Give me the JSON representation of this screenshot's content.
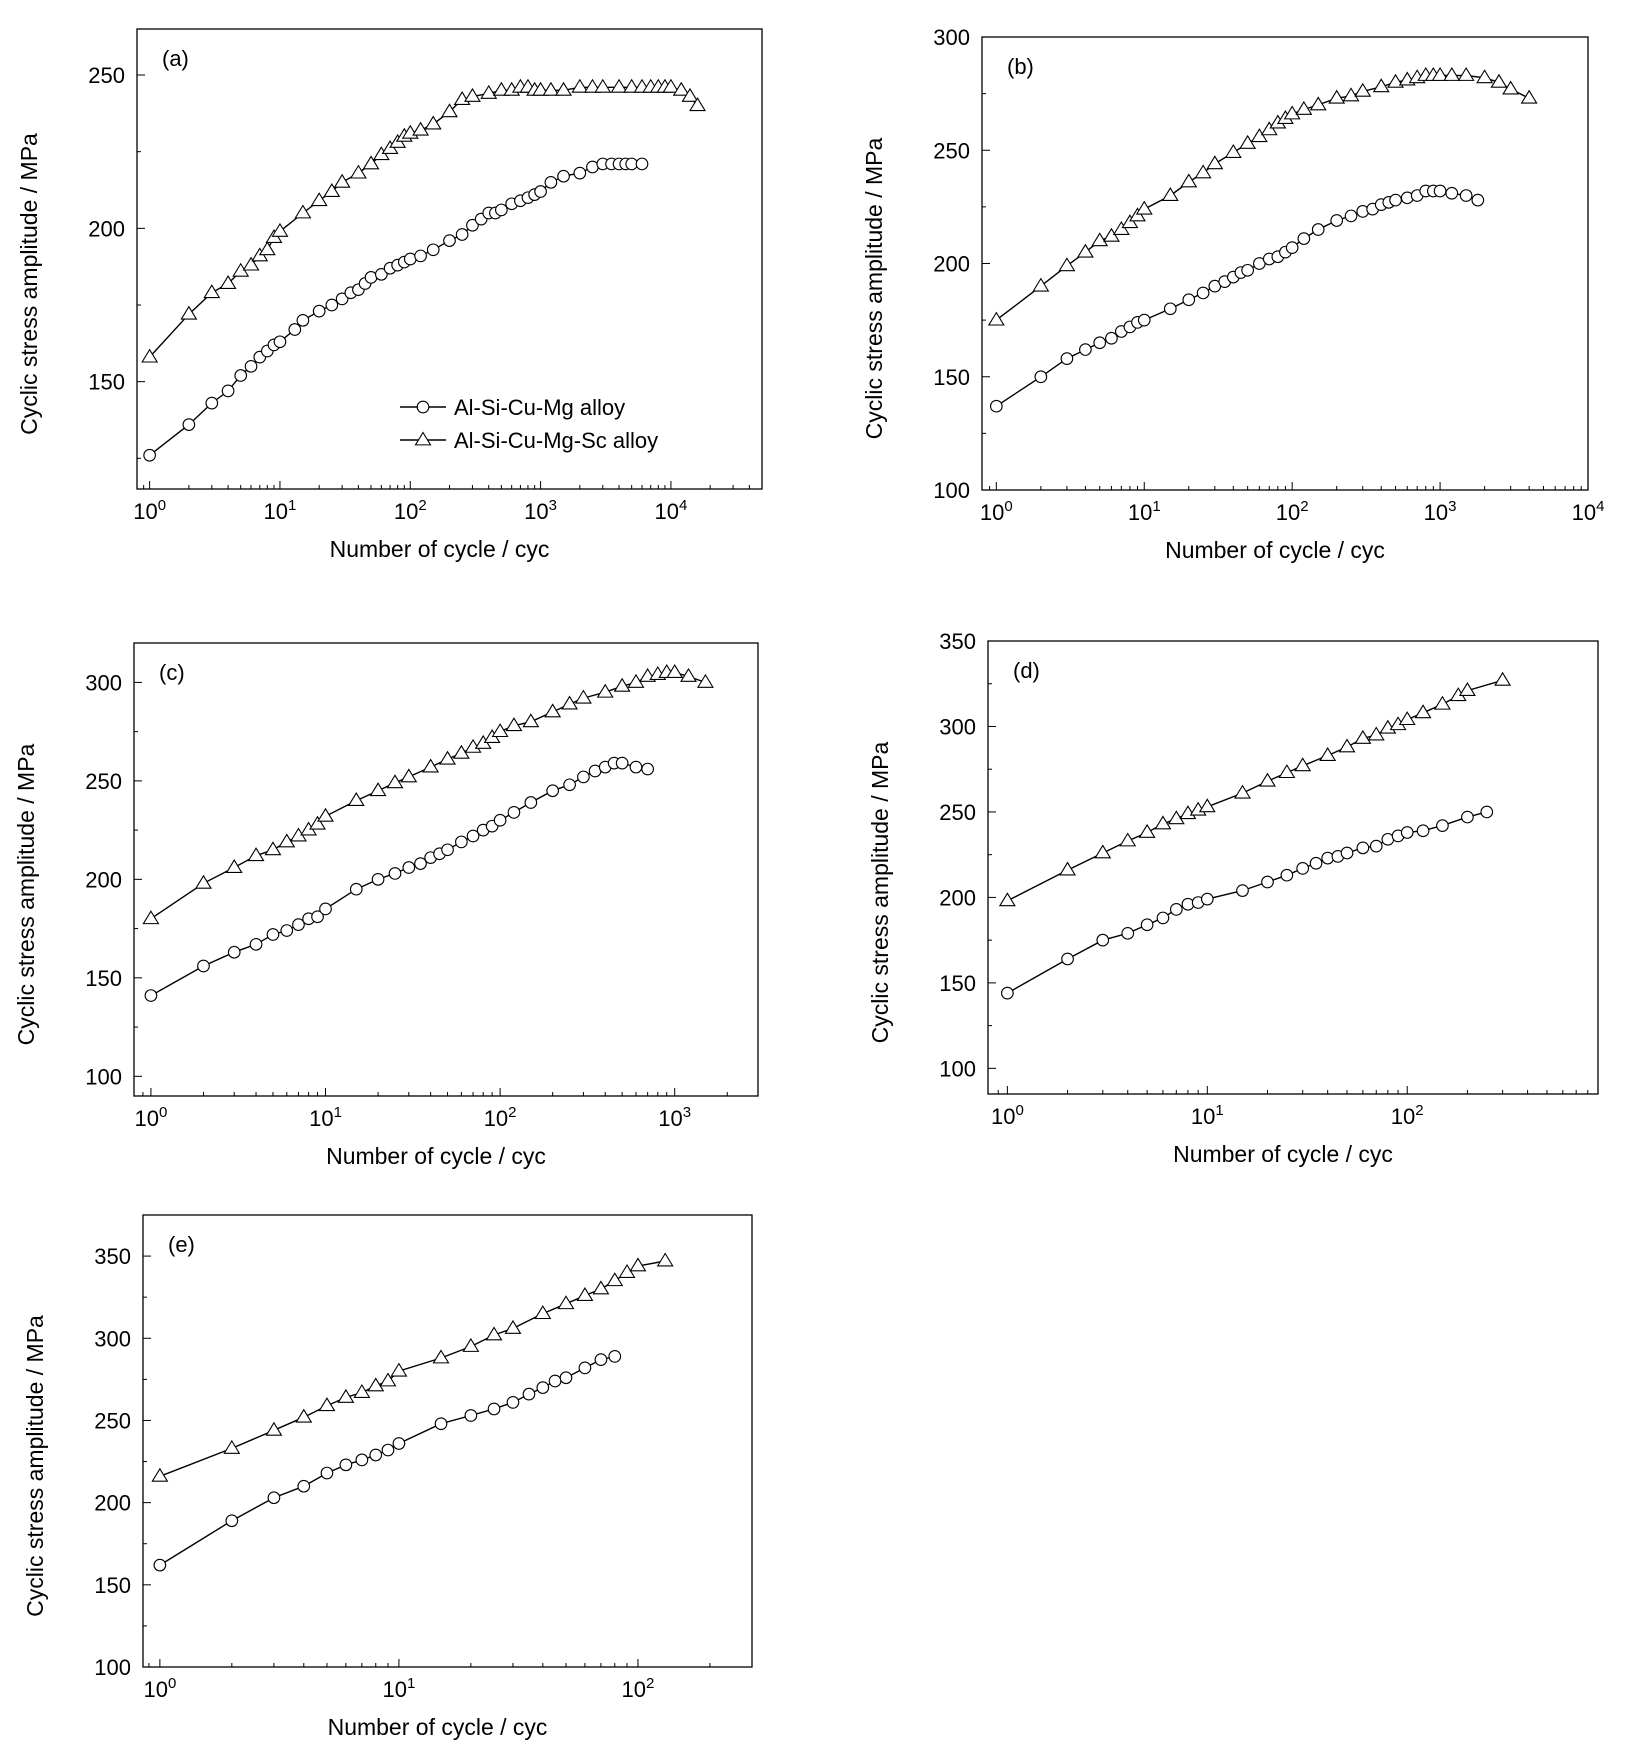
{
  "figure": {
    "background": "#ffffff",
    "line_color": "#000000"
  },
  "legend": {
    "entries": [
      {
        "label": "Al-Si-Cu-Mg alloy",
        "marker": "circle"
      },
      {
        "label": "Al-Si-Cu-Mg-Sc alloy",
        "marker": "triangle"
      }
    ],
    "placement": "bottom-right of panel (a)"
  },
  "chart_data": [
    {
      "panel": "(a)",
      "type": "line",
      "xscale": "log",
      "xlim": [
        0.8,
        50000
      ],
      "ylim": [
        115,
        265
      ],
      "xticks": [
        1,
        10,
        100,
        1000,
        10000
      ],
      "xtick_labels": [
        [
          "10",
          "0"
        ],
        [
          "10",
          "1"
        ],
        [
          "10",
          "2"
        ],
        [
          "10",
          "3"
        ],
        [
          "10",
          "4"
        ]
      ],
      "yticks": [
        150,
        200,
        250
      ],
      "xlabel": "Number of cycle / cyc",
      "ylabel": "Cyclic stress amplitude / MPa",
      "grid": false,
      "series": [
        {
          "name": "Al-Si-Cu-Mg alloy",
          "marker": "circle",
          "x": [
            1,
            2,
            3,
            4,
            5,
            6,
            7,
            8,
            9,
            10,
            13,
            15,
            20,
            25,
            30,
            35,
            40,
            45,
            50,
            60,
            70,
            80,
            90,
            100,
            120,
            150,
            200,
            250,
            300,
            350,
            400,
            450,
            500,
            600,
            700,
            800,
            900,
            1000,
            1200,
            1500,
            2000,
            2500,
            3000,
            3500,
            4000,
            4500,
            5000,
            6000
          ],
          "y": [
            126,
            136,
            143,
            147,
            152,
            155,
            158,
            160,
            162,
            163,
            167,
            170,
            173,
            175,
            177,
            179,
            180,
            182,
            184,
            185,
            187,
            188,
            189,
            190,
            191,
            193,
            196,
            198,
            201,
            203,
            205,
            205,
            206,
            208,
            209,
            210,
            211,
            212,
            215,
            217,
            218,
            220,
            221,
            221,
            221,
            221,
            221,
            221
          ]
        },
        {
          "name": "Al-Si-Cu-Mg-Sc alloy",
          "marker": "triangle",
          "x": [
            1,
            2,
            3,
            4,
            5,
            6,
            7,
            8,
            9,
            10,
            15,
            20,
            25,
            30,
            40,
            50,
            60,
            70,
            80,
            90,
            100,
            120,
            150,
            200,
            250,
            300,
            400,
            500,
            600,
            700,
            800,
            900,
            1000,
            1200,
            1500,
            2000,
            2500,
            3000,
            4000,
            5000,
            6000,
            7000,
            8000,
            9000,
            10000,
            12000,
            14000,
            16000
          ],
          "y": [
            158,
            172,
            179,
            182,
            186,
            188,
            191,
            193,
            197,
            199,
            205,
            209,
            212,
            215,
            218,
            221,
            224,
            226,
            228,
            230,
            231,
            232,
            234,
            238,
            242,
            243,
            244,
            245,
            245,
            246,
            246,
            245,
            245,
            245,
            245,
            246,
            246,
            246,
            246,
            246,
            246,
            246,
            246,
            246,
            246,
            245,
            243,
            240
          ]
        }
      ]
    },
    {
      "panel": "(b)",
      "type": "line",
      "xscale": "log",
      "xlim": [
        0.8,
        10000
      ],
      "ylim": [
        100,
        300
      ],
      "xticks": [
        1,
        10,
        100,
        1000,
        10000
      ],
      "xtick_labels": [
        [
          "10",
          "0"
        ],
        [
          "10",
          "1"
        ],
        [
          "10",
          "2"
        ],
        [
          "10",
          "3"
        ],
        [
          "10",
          "4"
        ]
      ],
      "yticks": [
        100,
        150,
        200,
        250,
        300
      ],
      "xlabel": "Number of cycle / cyc",
      "ylabel": "Cyclic stress amplitude / MPa",
      "grid": false,
      "series": [
        {
          "name": "Al-Si-Cu-Mg alloy",
          "marker": "circle",
          "x": [
            1,
            2,
            3,
            4,
            5,
            6,
            7,
            8,
            9,
            10,
            15,
            20,
            25,
            30,
            35,
            40,
            45,
            50,
            60,
            70,
            80,
            90,
            100,
            120,
            150,
            200,
            250,
            300,
            350,
            400,
            450,
            500,
            600,
            700,
            800,
            900,
            1000,
            1200,
            1500,
            1800
          ],
          "y": [
            137,
            150,
            158,
            162,
            165,
            167,
            170,
            172,
            174,
            175,
            180,
            184,
            187,
            190,
            192,
            194,
            196,
            197,
            200,
            202,
            203,
            205,
            207,
            211,
            215,
            219,
            221,
            223,
            224,
            226,
            227,
            228,
            229,
            230,
            232,
            232,
            232,
            231,
            230,
            228
          ]
        },
        {
          "name": "Al-Si-Cu-Mg-Sc alloy",
          "marker": "triangle",
          "x": [
            1,
            2,
            3,
            4,
            5,
            6,
            7,
            8,
            9,
            10,
            15,
            20,
            25,
            30,
            40,
            50,
            60,
            70,
            80,
            90,
            100,
            120,
            150,
            200,
            250,
            300,
            400,
            500,
            600,
            700,
            800,
            900,
            1000,
            1200,
            1500,
            2000,
            2500,
            3000,
            4000
          ],
          "y": [
            175,
            190,
            199,
            205,
            210,
            212,
            215,
            218,
            221,
            224,
            230,
            236,
            240,
            244,
            249,
            253,
            256,
            259,
            262,
            264,
            266,
            268,
            270,
            273,
            274,
            276,
            278,
            280,
            281,
            282,
            283,
            283,
            283,
            283,
            283,
            282,
            280,
            277,
            273
          ]
        }
      ]
    },
    {
      "panel": "(c)",
      "type": "line",
      "xscale": "log",
      "xlim": [
        0.8,
        3000
      ],
      "ylim": [
        90,
        320
      ],
      "xticks": [
        1,
        10,
        100,
        1000
      ],
      "xtick_labels": [
        [
          "10",
          "0"
        ],
        [
          "10",
          "1"
        ],
        [
          "10",
          "2"
        ],
        [
          "10",
          "3"
        ]
      ],
      "yticks": [
        100,
        150,
        200,
        250,
        300
      ],
      "xlabel": "Number of cycle / cyc",
      "ylabel": "Cyclic stress amplitude / MPa",
      "grid": false,
      "series": [
        {
          "name": "Al-Si-Cu-Mg alloy",
          "marker": "circle",
          "x": [
            1,
            2,
            3,
            4,
            5,
            6,
            7,
            8,
            9,
            10,
            15,
            20,
            25,
            30,
            35,
            40,
            45,
            50,
            60,
            70,
            80,
            90,
            100,
            120,
            150,
            200,
            250,
            300,
            350,
            400,
            450,
            500,
            600,
            700
          ],
          "y": [
            141,
            156,
            163,
            167,
            172,
            174,
            177,
            180,
            181,
            185,
            195,
            200,
            203,
            206,
            208,
            211,
            213,
            215,
            219,
            222,
            225,
            227,
            230,
            234,
            239,
            245,
            248,
            252,
            255,
            257,
            259,
            259,
            257,
            256
          ]
        },
        {
          "name": "Al-Si-Cu-Mg-Sc alloy",
          "marker": "triangle",
          "x": [
            1,
            2,
            3,
            4,
            5,
            6,
            7,
            8,
            9,
            10,
            15,
            20,
            25,
            30,
            40,
            50,
            60,
            70,
            80,
            90,
            100,
            120,
            150,
            200,
            250,
            300,
            400,
            500,
            600,
            700,
            800,
            900,
            1000,
            1200,
            1500
          ],
          "y": [
            180,
            198,
            206,
            212,
            215,
            219,
            222,
            225,
            228,
            232,
            240,
            245,
            249,
            252,
            257,
            261,
            264,
            267,
            269,
            272,
            275,
            278,
            280,
            285,
            289,
            292,
            295,
            298,
            300,
            303,
            304,
            305,
            305,
            303,
            300
          ]
        }
      ]
    },
    {
      "panel": "(d)",
      "type": "line",
      "xscale": "log",
      "xlim": [
        0.8,
        900
      ],
      "ylim": [
        85,
        350
      ],
      "xticks": [
        1,
        10,
        100
      ],
      "xtick_labels": [
        [
          "10",
          "0"
        ],
        [
          "10",
          "1"
        ],
        [
          "10",
          "2"
        ]
      ],
      "yticks": [
        100,
        150,
        200,
        250,
        300,
        350
      ],
      "xlabel": "Number of cycle / cyc",
      "ylabel": "Cyclic stress amplitude / MPa",
      "grid": false,
      "series": [
        {
          "name": "Al-Si-Cu-Mg alloy",
          "marker": "circle",
          "x": [
            1,
            2,
            3,
            4,
            5,
            6,
            7,
            8,
            9,
            10,
            15,
            20,
            25,
            30,
            35,
            40,
            45,
            50,
            60,
            70,
            80,
            90,
            100,
            120,
            150,
            200,
            250
          ],
          "y": [
            144,
            164,
            175,
            179,
            184,
            188,
            193,
            196,
            197,
            199,
            204,
            209,
            213,
            217,
            220,
            223,
            224,
            226,
            229,
            230,
            234,
            236,
            238,
            239,
            242,
            247,
            250
          ]
        },
        {
          "name": "Al-Si-Cu-Mg-Sc alloy",
          "marker": "triangle",
          "x": [
            1,
            2,
            3,
            4,
            5,
            6,
            7,
            8,
            9,
            10,
            15,
            20,
            25,
            30,
            40,
            50,
            60,
            70,
            80,
            90,
            100,
            120,
            150,
            180,
            200,
            300
          ],
          "y": [
            198,
            216,
            226,
            233,
            238,
            243,
            246,
            249,
            251,
            253,
            261,
            268,
            273,
            277,
            283,
            288,
            293,
            295,
            299,
            301,
            304,
            308,
            313,
            318,
            321,
            327
          ]
        }
      ]
    },
    {
      "panel": "(e)",
      "type": "line",
      "xscale": "log",
      "xlim": [
        0.85,
        300
      ],
      "ylim": [
        100,
        375
      ],
      "xticks": [
        1,
        10,
        100
      ],
      "xtick_labels": [
        [
          "10",
          "0"
        ],
        [
          "10",
          "1"
        ],
        [
          "10",
          "2"
        ]
      ],
      "yticks": [
        100,
        150,
        200,
        250,
        300,
        350
      ],
      "xlabel": "Number of cycle / cyc",
      "ylabel": "Cyclic stress amplitude / MPa",
      "grid": false,
      "series": [
        {
          "name": "Al-Si-Cu-Mg alloy",
          "marker": "circle",
          "x": [
            1,
            2,
            3,
            4,
            5,
            6,
            7,
            8,
            9,
            10,
            15,
            20,
            25,
            30,
            35,
            40,
            45,
            50,
            60,
            70,
            80
          ],
          "y": [
            162,
            189,
            203,
            210,
            218,
            223,
            226,
            229,
            232,
            236,
            248,
            253,
            257,
            261,
            266,
            270,
            274,
            276,
            282,
            287,
            289
          ]
        },
        {
          "name": "Al-Si-Cu-Mg-Sc alloy",
          "marker": "triangle",
          "x": [
            1,
            2,
            3,
            4,
            5,
            6,
            7,
            8,
            9,
            10,
            15,
            20,
            25,
            30,
            40,
            50,
            60,
            70,
            80,
            90,
            100,
            130
          ],
          "y": [
            216,
            233,
            244,
            252,
            259,
            264,
            267,
            271,
            274,
            280,
            288,
            295,
            302,
            306,
            315,
            321,
            326,
            330,
            335,
            340,
            344,
            347
          ]
        }
      ]
    }
  ]
}
